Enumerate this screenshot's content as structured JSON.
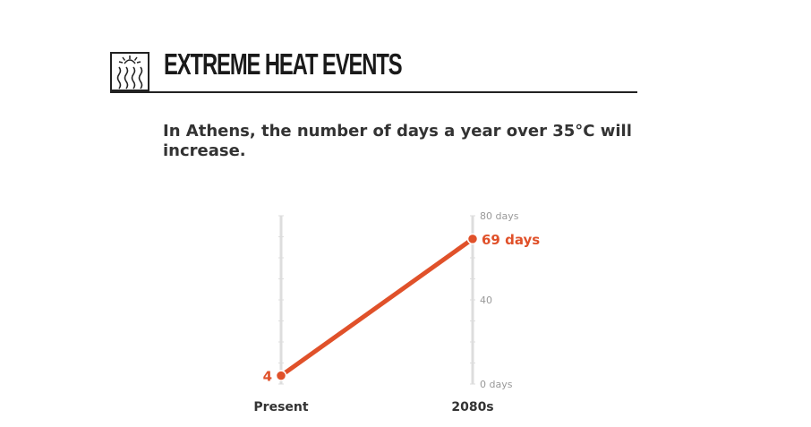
{
  "header": {
    "title": "EXTREME HEAT EVENTS",
    "icon": "heat-waves-icon"
  },
  "subtitle": "In Athens, the number of days a year over 35°C will increase.",
  "colors": {
    "accent": "#e0512a",
    "axis": "#dddddd",
    "text": "#333333",
    "muted": "#999999"
  },
  "chart_data": {
    "type": "line",
    "title": "",
    "categories": [
      "Present",
      "2080s"
    ],
    "values": [
      4,
      69
    ],
    "data_labels": [
      "4",
      "69 days"
    ],
    "ylim": [
      0,
      80
    ],
    "y_tick_labels": [
      "0 days",
      "40",
      "80 days"
    ],
    "grid": false
  }
}
